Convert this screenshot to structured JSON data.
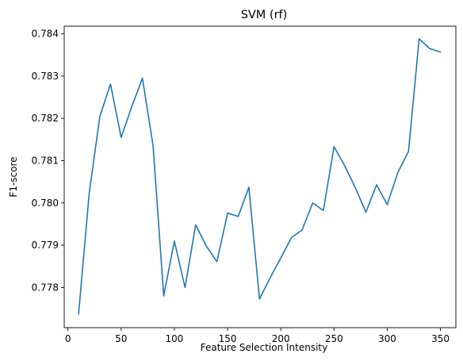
{
  "chart_data": {
    "type": "line",
    "title": "SVM (rf)",
    "xlabel": "Feature Selection Intensity",
    "ylabel": "F1-score",
    "xlim": [
      -3.5,
      364.5
    ],
    "ylim": [
      0.77705,
      0.78418
    ],
    "xticks": [
      0,
      50,
      100,
      150,
      200,
      250,
      300,
      350
    ],
    "yticks": [
      0.778,
      0.779,
      0.78,
      0.781,
      0.782,
      0.783,
      0.784
    ],
    "ytick_labels": [
      "0.778",
      "0.779",
      "0.780",
      "0.781",
      "0.782",
      "0.783",
      "0.784"
    ],
    "grid": false,
    "series": [
      {
        "color": "#1f77b4",
        "x": [
          10,
          20,
          30,
          40,
          50,
          60,
          70,
          80,
          90,
          100,
          110,
          120,
          130,
          140,
          150,
          160,
          170,
          180,
          190,
          200,
          210,
          220,
          230,
          240,
          250,
          260,
          270,
          280,
          290,
          300,
          310,
          320,
          330,
          340,
          350
        ],
        "y": [
          0.77737,
          0.78023,
          0.78205,
          0.78281,
          0.78155,
          0.78228,
          0.78295,
          0.78135,
          0.7778,
          0.7791,
          0.778,
          0.77948,
          0.77898,
          0.77861,
          0.77976,
          0.77968,
          0.78037,
          0.77773,
          0.77823,
          0.7787,
          0.77918,
          0.77936,
          0.78,
          0.77982,
          0.78133,
          0.78088,
          0.78036,
          0.77978,
          0.78043,
          0.77996,
          0.78072,
          0.78122,
          0.78388,
          0.78365,
          0.78357
        ]
      }
    ]
  }
}
